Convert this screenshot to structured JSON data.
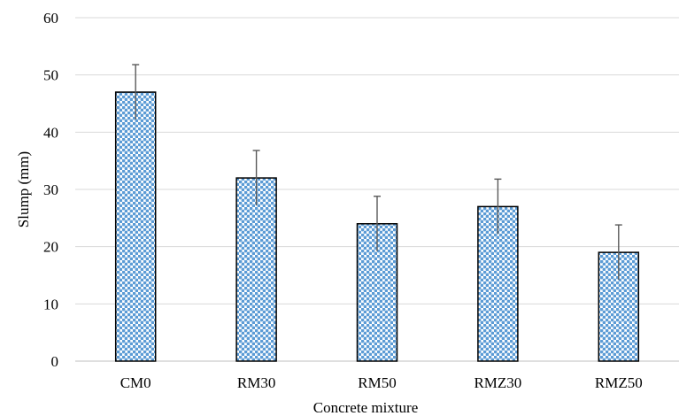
{
  "chart_data": {
    "type": "bar",
    "title": "",
    "xlabel": "Concrete mixture",
    "ylabel": "Slump (mm)",
    "categories": [
      "CM0",
      "RM30",
      "RM50",
      "RMZ30",
      "RMZ50"
    ],
    "values": [
      47,
      32,
      24,
      27,
      19
    ],
    "error_plus": [
      4.8,
      4.8,
      4.8,
      4.8,
      4.8
    ],
    "error_minus": [
      4.8,
      4.8,
      4.8,
      4.8,
      4.8
    ],
    "ylim": [
      0,
      60
    ],
    "yticks": [
      0,
      10,
      20,
      30,
      40,
      50,
      60
    ],
    "ytick_labels": [
      "0",
      "10",
      "20",
      "30",
      "40",
      "50",
      "60"
    ],
    "grid": true,
    "legend": "none",
    "bar_fill": "#5b9bd5",
    "bar_pattern": "dotted",
    "bar_outline": "#000000",
    "error_bar_color": "#595959",
    "grid_color": "#d9d9d9"
  }
}
